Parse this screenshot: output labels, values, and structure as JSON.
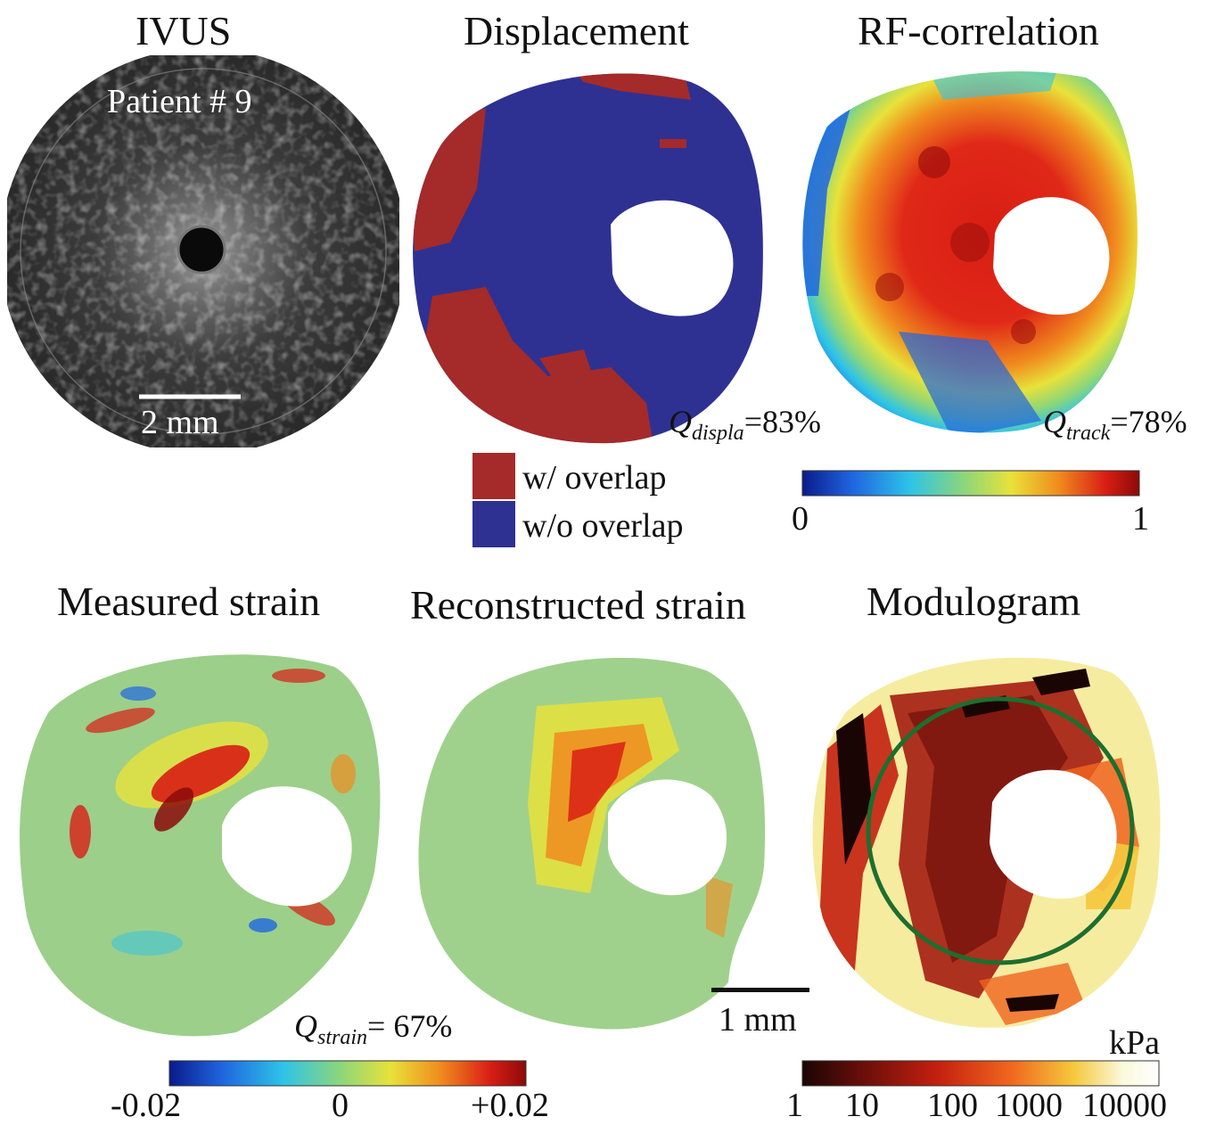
{
  "panels": {
    "ivus": {
      "title": "IVUS",
      "patient": "Patient # 9",
      "scalebar": "2 mm"
    },
    "displacement": {
      "title": "Displacement",
      "quality": {
        "symbol": "Q",
        "sub": "displa",
        "value": "=83%"
      },
      "legend": [
        {
          "label": "w/ overlap",
          "color": "#a52a2a"
        },
        {
          "label": "w/o overlap",
          "color": "#2e3192"
        }
      ]
    },
    "rf_correlation": {
      "title": "RF-correlation",
      "quality": {
        "symbol": "Q",
        "sub": "track",
        "value": "=78%"
      },
      "colorbar": {
        "min": "0",
        "max": "1"
      }
    },
    "measured_strain": {
      "title": "Measured strain",
      "quality": {
        "symbol": "Q",
        "sub": "strain",
        "value": "= 67%"
      }
    },
    "reconstructed_strain": {
      "title": "Reconstructed strain",
      "scalebar": "1 mm"
    },
    "modulogram": {
      "title": "Modulogram",
      "colorbar": {
        "unit": "kPa",
        "ticks": [
          "1",
          "10",
          "100",
          "1000",
          "10000"
        ]
      }
    }
  },
  "strain_colorbar": {
    "ticks": [
      "-0.02",
      "0",
      "+0.02"
    ]
  },
  "colors": {
    "jet": [
      "#0a1a8c",
      "#1f66e0",
      "#2ec4e8",
      "#8cd67a",
      "#e8e23a",
      "#f08c1e",
      "#d81e14",
      "#8c0a0a"
    ],
    "hot": [
      "#1a0505",
      "#6e0f0a",
      "#c4200f",
      "#f0641e",
      "#f5c83c",
      "#fafadc",
      "#ffffff"
    ],
    "overlap": "#a52a2a",
    "no_overlap": "#2e3192",
    "circle": "#1e6e2e"
  }
}
